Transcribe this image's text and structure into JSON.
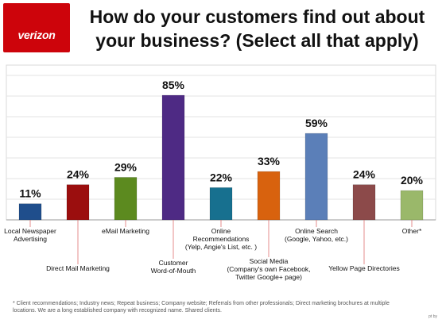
{
  "header": {
    "logo_text": "verizon",
    "title_line1": "How do your customers find out about",
    "title_line2": "your business? (Select all that apply)",
    "brand_color": "#cd040b"
  },
  "chart_data": {
    "type": "bar",
    "categories": [
      [
        "Local Newspaper",
        "Advertising"
      ],
      [
        "Direct Mail Marketing"
      ],
      [
        "eMail Marketing"
      ],
      [
        "Customer",
        "Word-of-Mouth"
      ],
      [
        "Online",
        "Recommendations",
        "(Yelp, Angie's List, etc. )"
      ],
      [
        "Social Media",
        "(Company's own Facebook,",
        "Twitter Google+ page)"
      ],
      [
        "Online Search",
        "(Google, Yahoo, etc.)"
      ],
      [
        "Yellow Page Directories"
      ],
      [
        "Other*"
      ]
    ],
    "values": [
      11,
      24,
      29,
      85,
      22,
      33,
      59,
      24,
      20
    ],
    "value_labels": [
      "11%",
      "24%",
      "29%",
      "85%",
      "22%",
      "33%",
      "59%",
      "24%",
      "20%"
    ],
    "colors": [
      "#1f4e8c",
      "#9b0e0e",
      "#5c8a1f",
      "#4e2a84",
      "#17708f",
      "#d8620e",
      "#5b7fb8",
      "#8c4a4a",
      "#9ab86a"
    ],
    "ylim": [
      0,
      85
    ],
    "grid": true,
    "legend": "none"
  },
  "footnote": "* Client recommendations; Industry news; Repeat business; Company website; Referrals from other professionals; Direct marketing brochures at multiple locations. We are a long established company with recognized name. Shared clients.",
  "source_mark": "pt by"
}
